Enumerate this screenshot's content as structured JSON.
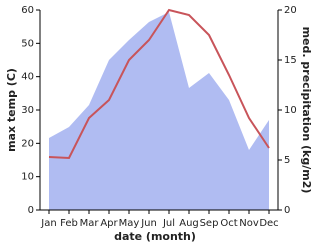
{
  "chart_data": {
    "type": "line",
    "x_label": "date (month)",
    "y_label": "max temp (C)",
    "y2_label": "med. precipitation (kg/m2)",
    "categories": [
      "Jan",
      "Feb",
      "Mar",
      "Apr",
      "May",
      "Jun",
      "Jul",
      "Aug",
      "Sep",
      "Oct",
      "Nov",
      "Dec"
    ],
    "series": [
      {
        "name": "med. precipitation",
        "type": "area",
        "axis": "y2",
        "color": "#b0bcf2",
        "values": [
          7.2,
          8.3,
          10.5,
          15,
          17,
          18.8,
          19.8,
          12.2,
          13.7,
          11,
          6,
          9
        ]
      },
      {
        "name": "max temp",
        "type": "line",
        "color": "#c8545a",
        "values": [
          15.9,
          15.6,
          27.6,
          33,
          45,
          51,
          60,
          58.5,
          52.5,
          40.5,
          27.6,
          18.6
        ]
      }
    ],
    "ylim": [
      0,
      60
    ],
    "yticks": [
      0,
      10,
      20,
      30,
      40,
      50,
      60
    ],
    "y2lim": [
      0,
      20
    ],
    "y2ticks": [
      0,
      5,
      10,
      15,
      20
    ]
  }
}
